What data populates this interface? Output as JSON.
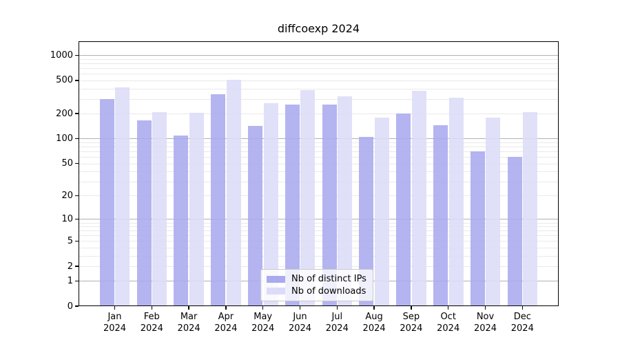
{
  "title": "diffcoexp 2024",
  "style": {
    "bar_color_distinct_ips": "#aaaaee",
    "bar_color_downloads": "#dcdcf8",
    "major_grid_color": "#b0b0b0",
    "minor_grid_color": "#e9e9e9",
    "axis_color": "#000000",
    "text_color": "#000000",
    "legend_border_color": "#c8c8c8"
  },
  "legend": {
    "items": [
      {
        "label": "Nb of distinct IPs"
      },
      {
        "label": "Nb of downloads"
      }
    ]
  },
  "chart_data": {
    "type": "bar",
    "title": "diffcoexp 2024",
    "categories": [
      "Jan 2024",
      "Feb 2024",
      "Mar 2024",
      "Apr 2024",
      "May 2024",
      "Jun 2024",
      "Jul 2024",
      "Aug 2024",
      "Sep 2024",
      "Oct 2024",
      "Nov 2024",
      "Dec 2024"
    ],
    "series": [
      {
        "name": "Nb of distinct IPs",
        "color": "#aaaaee",
        "values": [
          300,
          165,
          110,
          345,
          142,
          255,
          255,
          105,
          200,
          145,
          70,
          60
        ]
      },
      {
        "name": "Nb of downloads",
        "color": "#dcdcf8",
        "values": [
          415,
          210,
          205,
          510,
          265,
          380,
          325,
          180,
          375,
          310,
          180,
          210
        ]
      }
    ],
    "xlabel": "",
    "ylabel": "",
    "y_axis": {
      "scale": "log1p",
      "tick_values": [
        0,
        1,
        2,
        5,
        10,
        20,
        50,
        100,
        200,
        500,
        1000
      ],
      "top_value": 1470
    },
    "grid": true,
    "legend_position": "lower center"
  }
}
